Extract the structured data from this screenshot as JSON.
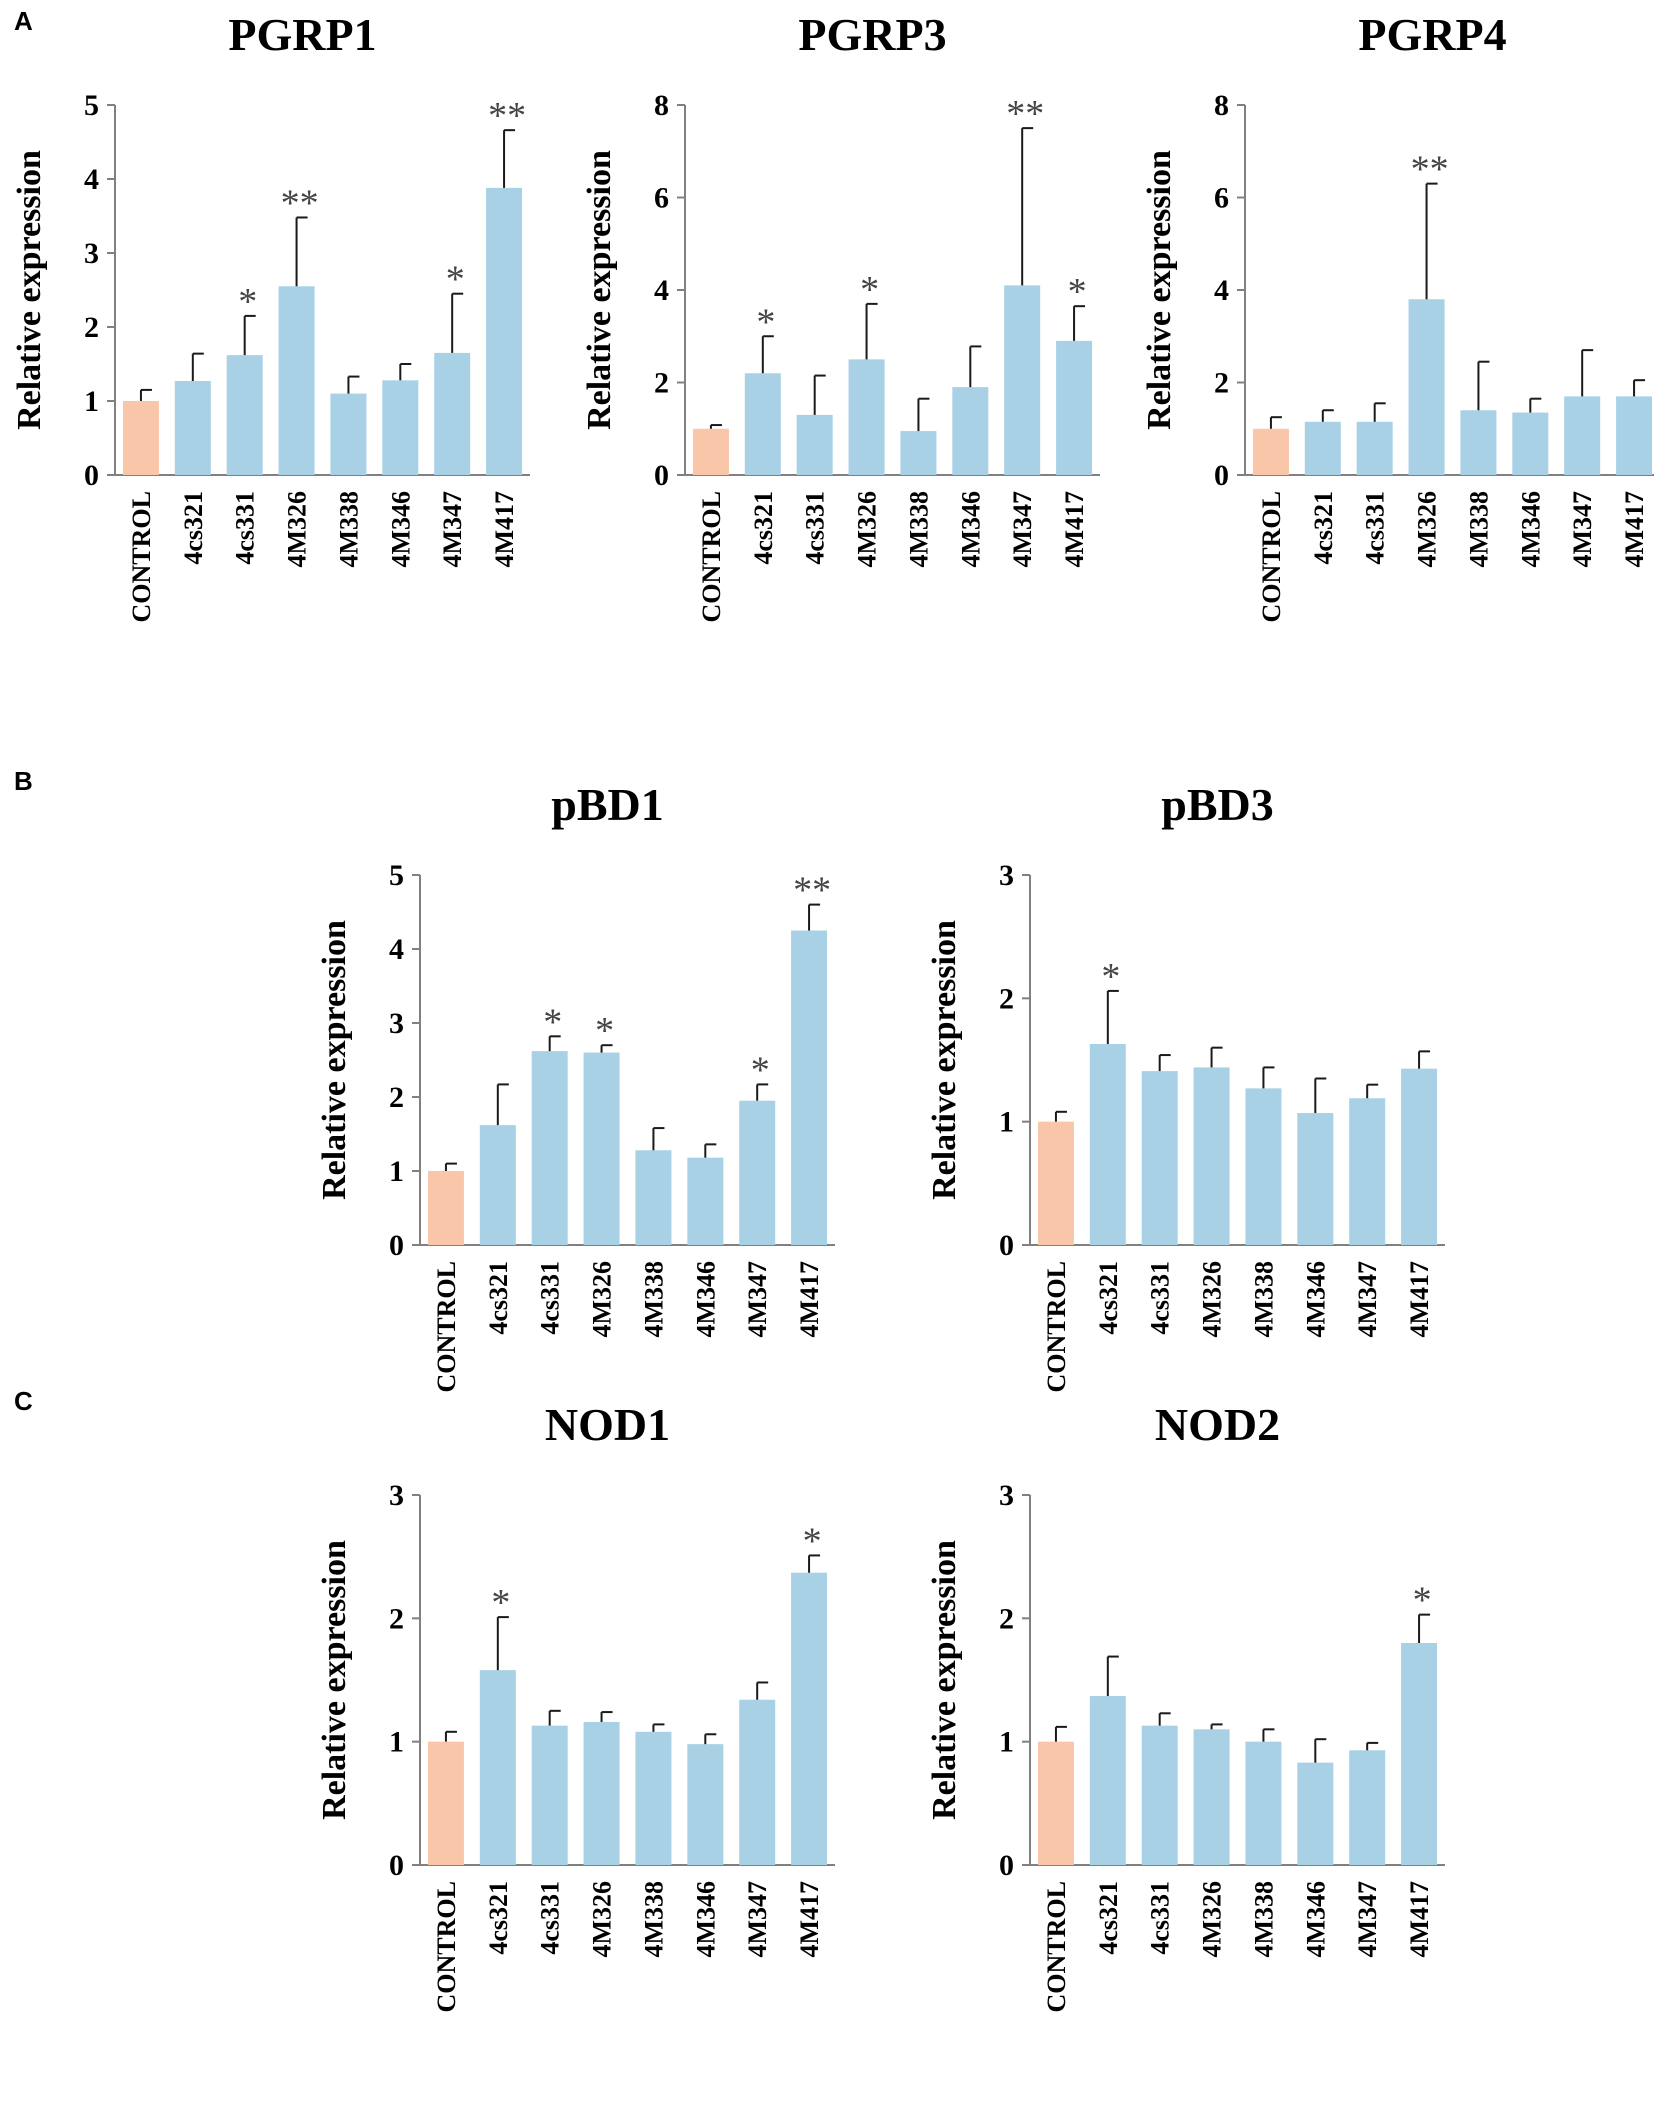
{
  "panels": {
    "a": "A",
    "b": "B",
    "c": "C"
  },
  "colors": {
    "control": "#f9c6a9",
    "treatment": "#a9d1e6",
    "axis": "#808080",
    "error": "#1a1a1a"
  },
  "chart_data": [
    {
      "id": "pgrp1",
      "type": "bar",
      "title": "PGRP1",
      "xlabel": "",
      "ylabel": "Relative expression",
      "categories": [
        "CONTROL",
        "4cs321",
        "4cs331",
        "4M326",
        "4M338",
        "4M346",
        "4M347",
        "4M417"
      ],
      "values": [
        1.0,
        1.27,
        1.62,
        2.55,
        1.1,
        1.28,
        1.65,
        3.88
      ],
      "errors": [
        0.15,
        0.37,
        0.53,
        0.93,
        0.23,
        0.22,
        0.8,
        0.78
      ],
      "significance": [
        "",
        "",
        "*",
        "**",
        "",
        "",
        "*",
        "**"
      ],
      "ylim": [
        0,
        5
      ],
      "yticks": [
        0,
        1,
        2,
        3,
        4,
        5
      ]
    },
    {
      "id": "pgrp3",
      "type": "bar",
      "title": "PGRP3",
      "xlabel": "",
      "ylabel": "Relative expression",
      "categories": [
        "CONTROL",
        "4cs321",
        "4cs331",
        "4M326",
        "4M338",
        "4M346",
        "4M347",
        "4M417"
      ],
      "values": [
        1.0,
        2.2,
        1.3,
        2.5,
        0.95,
        1.9,
        4.1,
        2.9
      ],
      "errors": [
        0.08,
        0.8,
        0.85,
        1.2,
        0.7,
        0.88,
        3.4,
        0.75
      ],
      "significance": [
        "",
        "*",
        "",
        "*",
        "",
        "",
        "**",
        "*"
      ],
      "ylim": [
        0,
        8
      ],
      "yticks": [
        0,
        2,
        4,
        6,
        8
      ]
    },
    {
      "id": "pgrp4",
      "type": "bar",
      "title": "PGRP4",
      "xlabel": "",
      "ylabel": "Relative expression",
      "categories": [
        "CONTROL",
        "4cs321",
        "4cs331",
        "4M326",
        "4M338",
        "4M346",
        "4M347",
        "4M417"
      ],
      "values": [
        1.0,
        1.15,
        1.15,
        3.8,
        1.4,
        1.35,
        1.7,
        1.7
      ],
      "errors": [
        0.25,
        0.25,
        0.4,
        2.5,
        1.05,
        0.3,
        1.0,
        0.35
      ],
      "significance": [
        "",
        "",
        "",
        "**",
        "",
        "",
        "",
        ""
      ],
      "ylim": [
        0,
        8
      ],
      "yticks": [
        0,
        2,
        4,
        6,
        8
      ]
    },
    {
      "id": "pbd1",
      "type": "bar",
      "title": "pBD1",
      "xlabel": "",
      "ylabel": "Relative expression",
      "categories": [
        "CONTROL",
        "4cs321",
        "4cs331",
        "4M326",
        "4M338",
        "4M346",
        "4M347",
        "4M417"
      ],
      "values": [
        1.0,
        1.62,
        2.62,
        2.6,
        1.28,
        1.18,
        1.95,
        4.25
      ],
      "errors": [
        0.1,
        0.55,
        0.2,
        0.1,
        0.3,
        0.18,
        0.22,
        0.35
      ],
      "significance": [
        "",
        "",
        "*",
        "*",
        "",
        "",
        "*",
        "**"
      ],
      "ylim": [
        0,
        5
      ],
      "yticks": [
        0,
        1,
        2,
        3,
        4,
        5
      ]
    },
    {
      "id": "pbd3",
      "type": "bar",
      "title": "pBD3",
      "xlabel": "",
      "ylabel": "Relative expression",
      "categories": [
        "CONTROL",
        "4cs321",
        "4cs331",
        "4M326",
        "4M338",
        "4M346",
        "4M347",
        "4M417"
      ],
      "values": [
        1.0,
        1.63,
        1.41,
        1.44,
        1.27,
        1.07,
        1.19,
        1.43
      ],
      "errors": [
        0.08,
        0.43,
        0.13,
        0.16,
        0.17,
        0.28,
        0.11,
        0.14
      ],
      "significance": [
        "",
        "*",
        "",
        "",
        "",
        "",
        "",
        ""
      ],
      "ylim": [
        0,
        3
      ],
      "yticks": [
        0,
        1,
        2,
        3
      ]
    },
    {
      "id": "nod1",
      "type": "bar",
      "title": "NOD1",
      "xlabel": "",
      "ylabel": "Relative expression",
      "categories": [
        "CONTROL",
        "4cs321",
        "4cs331",
        "4M326",
        "4M338",
        "4M346",
        "4M347",
        "4M417"
      ],
      "values": [
        1.0,
        1.58,
        1.13,
        1.16,
        1.08,
        0.98,
        1.34,
        2.37
      ],
      "errors": [
        0.08,
        0.43,
        0.12,
        0.08,
        0.06,
        0.08,
        0.14,
        0.14
      ],
      "significance": [
        "",
        "*",
        "",
        "",
        "",
        "",
        "",
        "*"
      ],
      "ylim": [
        0,
        3
      ],
      "yticks": [
        0,
        1,
        2,
        3
      ]
    },
    {
      "id": "nod2",
      "type": "bar",
      "title": "NOD2",
      "xlabel": "",
      "ylabel": "Relative expression",
      "categories": [
        "CONTROL",
        "4cs321",
        "4cs331",
        "4M326",
        "4M338",
        "4M346",
        "4M347",
        "4M417"
      ],
      "values": [
        1.0,
        1.37,
        1.13,
        1.1,
        1.0,
        0.83,
        0.93,
        1.8
      ],
      "errors": [
        0.12,
        0.32,
        0.1,
        0.04,
        0.1,
        0.19,
        0.06,
        0.23
      ],
      "significance": [
        "",
        "",
        "",
        "",
        "",
        "",
        "",
        "*"
      ],
      "ylim": [
        0,
        3
      ],
      "yticks": [
        0,
        1,
        2,
        3
      ]
    }
  ]
}
